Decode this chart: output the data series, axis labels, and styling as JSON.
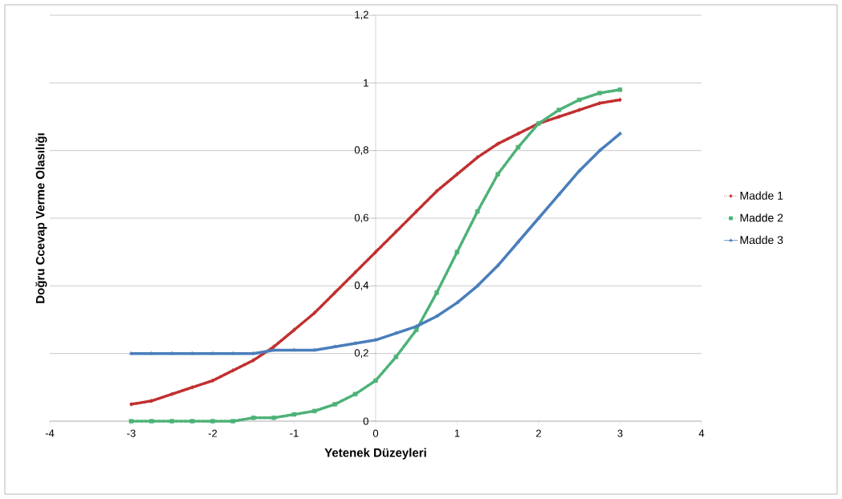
{
  "chart_data": {
    "type": "line",
    "xlabel": "Yetenek Düzeyleri",
    "ylabel": "Doğru Ccevap Verme Olasılığı",
    "x": [
      -3,
      -2.75,
      -2.5,
      -2.25,
      -2,
      -1.75,
      -1.5,
      -1.25,
      -1,
      -0.75,
      -0.5,
      -0.25,
      0,
      0.25,
      0.5,
      0.75,
      1,
      1.25,
      1.5,
      1.75,
      2,
      2.25,
      2.5,
      2.75,
      3
    ],
    "series": [
      {
        "name": "Madde 1",
        "color": "#c0302f",
        "marker": "diamond",
        "line_style": "dotted",
        "values": [
          0.05,
          0.06,
          0.08,
          0.1,
          0.12,
          0.15,
          0.18,
          0.22,
          0.27,
          0.32,
          0.38,
          0.44,
          0.5,
          0.56,
          0.62,
          0.68,
          0.73,
          0.78,
          0.82,
          0.85,
          0.88,
          0.9,
          0.92,
          0.94,
          0.95
        ]
      },
      {
        "name": "Madde 2",
        "color": "#4db277",
        "marker": "square",
        "line_style": "dotted",
        "values": [
          0.0,
          0.0,
          0.0,
          0.0,
          0.0,
          0.0,
          0.01,
          0.01,
          0.02,
          0.03,
          0.05,
          0.08,
          0.12,
          0.19,
          0.27,
          0.38,
          0.5,
          0.62,
          0.73,
          0.81,
          0.88,
          0.92,
          0.95,
          0.97,
          0.98
        ]
      },
      {
        "name": "Madde 3",
        "color": "#4a7ebb",
        "marker": "triangle",
        "line_style": "solid",
        "values": [
          0.2,
          0.2,
          0.2,
          0.2,
          0.2,
          0.2,
          0.2,
          0.21,
          0.21,
          0.21,
          0.22,
          0.23,
          0.24,
          0.26,
          0.28,
          0.31,
          0.35,
          0.4,
          0.46,
          0.53,
          0.6,
          0.67,
          0.74,
          0.8,
          0.85
        ]
      }
    ],
    "xlim": [
      -4,
      4
    ],
    "xticks": [
      -4,
      -3,
      -2,
      -1,
      0,
      1,
      2,
      3,
      4
    ],
    "ylim": [
      0,
      1.2
    ],
    "yticks": [
      0,
      {
        "value": 0.2,
        "label": "0,2"
      },
      {
        "value": 0.4,
        "label": "0,4"
      },
      {
        "value": 0.6,
        "label": "0,6"
      },
      {
        "value": 0.8,
        "label": "0,8"
      },
      1,
      {
        "value": 1.2,
        "label": "1,2"
      }
    ],
    "grid": "y",
    "legend": "right"
  }
}
